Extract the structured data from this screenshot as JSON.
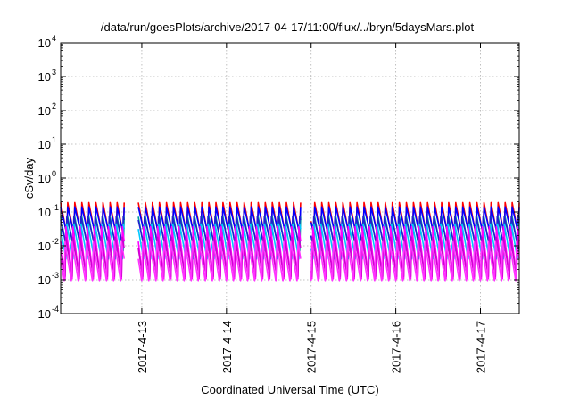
{
  "chart_data": {
    "type": "line",
    "title": "/data/run/goesPlots/archive/2017-04-17/11:00/flux/../bryn/5daysMars.plot",
    "xlabel": "Coordinated Universal Time (UTC)",
    "ylabel": "cSv/day",
    "yscale": "log",
    "ylim": [
      0.0001,
      10000
    ],
    "y_ticks": [
      {
        "base": "10",
        "exp": "-4",
        "value": 0.0001
      },
      {
        "base": "10",
        "exp": "-3",
        "value": 0.001
      },
      {
        "base": "10",
        "exp": "-2",
        "value": 0.01
      },
      {
        "base": "10",
        "exp": "-1",
        "value": 0.1
      },
      {
        "base": "10",
        "exp": "0",
        "value": 1
      },
      {
        "base": "10",
        "exp": "1",
        "value": 10
      },
      {
        "base": "10",
        "exp": "2",
        "value": 100
      },
      {
        "base": "10",
        "exp": "3",
        "value": 1000
      },
      {
        "base": "10",
        "exp": "4",
        "value": 10000
      }
    ],
    "xlim": [
      "2017-04-12T01:00",
      "2017-04-17T11:00"
    ],
    "x_ticks": [
      {
        "label": "2017-4-13",
        "value": "2017-04-13T00:00"
      },
      {
        "label": "2017-4-14",
        "value": "2017-04-14T00:00"
      },
      {
        "label": "2017-4-15",
        "value": "2017-04-15T00:00"
      },
      {
        "label": "2017-4-16",
        "value": "2017-04-16T00:00"
      },
      {
        "label": "2017-4-17",
        "value": "2017-04-17T00:00"
      }
    ],
    "grid": true,
    "legend": "none",
    "pattern": {
      "period_hours": 2.0,
      "gaps": [
        {
          "from": "2017-04-12T19:00",
          "to": "2017-04-12T23:00"
        },
        {
          "from": "2017-04-14T21:00",
          "to": "2017-04-15T00:00"
        }
      ]
    },
    "series": [
      {
        "color": "#ff0000",
        "peak": 0.19,
        "trough": 0.015
      },
      {
        "color": "#0000ff",
        "peak": 0.16,
        "trough": 0.02
      },
      {
        "color": "#00a0a0",
        "peak": 0.1,
        "trough": 0.007
      },
      {
        "color": "#2020d0",
        "peak": 0.085,
        "trough": 0.01
      },
      {
        "color": "#00c8ff",
        "peak": 0.06,
        "trough": 0.004
      },
      {
        "color": "#ff00ff",
        "peak": 0.045,
        "trough": 0.0008
      },
      {
        "color": "#d000d0",
        "peak": 0.025,
        "trough": 0.0012
      },
      {
        "color": "#ff33ff",
        "peak": 0.015,
        "trough": 0.0007
      }
    ]
  }
}
